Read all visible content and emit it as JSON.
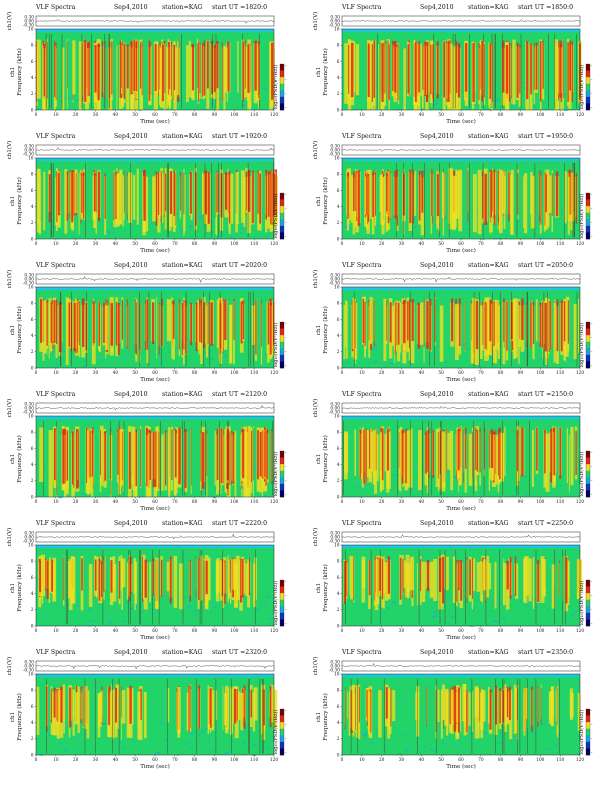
{
  "header_common": {
    "title": "VLF Spectra",
    "date": "Sep4,2010",
    "station": "station=KAG",
    "start_prefix": "start UT ="
  },
  "axis_text": {
    "x_label": "Time (sec)",
    "y_label_spec": "Frequency (kHz)",
    "channel_label": "ch1",
    "y_label_wave": "ch1(V)",
    "colorbar_label": "log₁₀(PSD(V²/Hz))"
  },
  "colors": {
    "spectrogram_low": "#1aa8d8",
    "spectrogram_mid": "#22d36a",
    "spectrogram_high": "#f0e020",
    "spectrogram_peak": "#e02818",
    "top_band": "#1dc7e3"
  },
  "chart_data": [
    {
      "type": "heatmap",
      "start_ut": "1820:0",
      "xlim": [
        0,
        120
      ],
      "ylim": [
        0,
        10
      ],
      "x_ticks": [
        0,
        10,
        20,
        30,
        40,
        50,
        60,
        70,
        80,
        90,
        100,
        110,
        120
      ],
      "y_ticks": [
        0,
        2,
        4,
        6,
        8,
        10
      ],
      "wave_ticks": [
        "0.30",
        "0.00",
        "-0.30"
      ],
      "colorbar_ticks": [
        "-",
        "-",
        "-",
        "-"
      ],
      "activity": "high"
    },
    {
      "type": "heatmap",
      "start_ut": "1850:0",
      "xlim": [
        0,
        120
      ],
      "ylim": [
        0,
        10
      ],
      "x_ticks": [
        0,
        10,
        20,
        30,
        40,
        50,
        60,
        70,
        80,
        90,
        100,
        110,
        120
      ],
      "y_ticks": [
        0,
        2,
        4,
        6,
        8,
        10
      ],
      "wave_ticks": [
        "0.30",
        "0.00",
        "-0.30"
      ],
      "colorbar_ticks": [
        "-",
        "-",
        "-",
        "-"
      ],
      "activity": "high"
    },
    {
      "type": "heatmap",
      "start_ut": "1920:0",
      "xlim": [
        0,
        120
      ],
      "ylim": [
        0,
        10
      ],
      "x_ticks": [
        0,
        10,
        20,
        30,
        40,
        50,
        60,
        70,
        80,
        90,
        100,
        110,
        120
      ],
      "y_ticks": [
        0,
        2,
        4,
        6,
        8,
        10
      ],
      "wave_ticks": [
        "0.30",
        "0.00",
        "-0.30"
      ],
      "colorbar_ticks": [
        "-",
        "-",
        "-",
        "-"
      ],
      "activity": "medium"
    },
    {
      "type": "heatmap",
      "start_ut": "1950:0",
      "xlim": [
        0,
        120
      ],
      "ylim": [
        0,
        10
      ],
      "x_ticks": [
        0,
        10,
        20,
        30,
        40,
        50,
        60,
        70,
        80,
        90,
        100,
        110,
        120
      ],
      "y_ticks": [
        0,
        2,
        4,
        6,
        8,
        10
      ],
      "wave_ticks": [
        "0.30",
        "0.00",
        "-0.30"
      ],
      "colorbar_ticks": [
        "-",
        "-",
        "-",
        "-"
      ],
      "activity": "medium"
    },
    {
      "type": "heatmap",
      "start_ut": "2020:0",
      "xlim": [
        0,
        120
      ],
      "ylim": [
        0,
        10
      ],
      "x_ticks": [
        0,
        10,
        20,
        30,
        40,
        50,
        60,
        70,
        80,
        90,
        100,
        110,
        120
      ],
      "y_ticks": [
        0,
        2,
        4,
        6,
        8,
        10
      ],
      "wave_ticks": [
        "0.30",
        "0.00",
        "-0.30"
      ],
      "colorbar_ticks": [
        "-",
        "-",
        "-",
        "-"
      ],
      "activity": "medium"
    },
    {
      "type": "heatmap",
      "start_ut": "2050:0",
      "xlim": [
        0,
        120
      ],
      "ylim": [
        0,
        10
      ],
      "x_ticks": [
        0,
        10,
        20,
        30,
        40,
        50,
        60,
        70,
        80,
        90,
        100,
        110,
        120
      ],
      "y_ticks": [
        0,
        2,
        4,
        6,
        8,
        10
      ],
      "wave_ticks": [
        "0.30",
        "0.00",
        "-0.30"
      ],
      "colorbar_ticks": [
        "-",
        "-",
        "-",
        "-"
      ],
      "activity": "medium"
    },
    {
      "type": "heatmap",
      "start_ut": "2120:0",
      "xlim": [
        0,
        120
      ],
      "ylim": [
        0,
        10
      ],
      "x_ticks": [
        0,
        10,
        20,
        30,
        40,
        50,
        60,
        70,
        80,
        90,
        100,
        110,
        120
      ],
      "y_ticks": [
        0,
        2,
        4,
        6,
        8,
        10
      ],
      "wave_ticks": [
        "0.30",
        "0.00",
        "-0.30"
      ],
      "colorbar_ticks": [
        "-",
        "-",
        "-",
        "-"
      ],
      "activity": "high"
    },
    {
      "type": "heatmap",
      "start_ut": "2150:0",
      "xlim": [
        0,
        120
      ],
      "ylim": [
        0,
        10
      ],
      "x_ticks": [
        0,
        10,
        20,
        30,
        40,
        50,
        60,
        70,
        80,
        90,
        100,
        110,
        120
      ],
      "y_ticks": [
        0,
        2,
        4,
        6,
        8,
        10
      ],
      "wave_ticks": [
        "0.30",
        "0.00",
        "-0.30"
      ],
      "colorbar_ticks": [
        "-",
        "-",
        "-",
        "-"
      ],
      "activity": "medium"
    },
    {
      "type": "heatmap",
      "start_ut": "2220:0",
      "xlim": [
        0,
        120
      ],
      "ylim": [
        0,
        10
      ],
      "x_ticks": [
        0,
        10,
        20,
        30,
        40,
        50,
        60,
        70,
        80,
        90,
        100,
        110,
        120
      ],
      "y_ticks": [
        0,
        2,
        4,
        6,
        8,
        10
      ],
      "wave_ticks": [
        "0.30",
        "0.00",
        "-0.30"
      ],
      "colorbar_ticks": [
        "-",
        "-",
        "-",
        "-"
      ],
      "activity": "low"
    },
    {
      "type": "heatmap",
      "start_ut": "2250:0",
      "xlim": [
        0,
        120
      ],
      "ylim": [
        0,
        10
      ],
      "x_ticks": [
        0,
        10,
        20,
        30,
        40,
        50,
        60,
        70,
        80,
        90,
        100,
        110,
        120
      ],
      "y_ticks": [
        0,
        2,
        4,
        6,
        8,
        10
      ],
      "wave_ticks": [
        "0.30",
        "0.00",
        "-0.30"
      ],
      "colorbar_ticks": [
        "-",
        "-",
        "-",
        "-"
      ],
      "activity": "low"
    },
    {
      "type": "heatmap",
      "start_ut": "2320:0",
      "xlim": [
        0,
        120
      ],
      "ylim": [
        0,
        10
      ],
      "x_ticks": [
        0,
        10,
        20,
        30,
        40,
        50,
        60,
        70,
        80,
        90,
        100,
        110,
        120
      ],
      "y_ticks": [
        0,
        2,
        4,
        6,
        8,
        10
      ],
      "wave_ticks": [
        "0.30",
        "0.00",
        "-0.30"
      ],
      "colorbar_ticks": [
        "-",
        "-",
        "-",
        "-"
      ],
      "activity": "low"
    },
    {
      "type": "heatmap",
      "start_ut": "2350:0",
      "xlim": [
        0,
        120
      ],
      "ylim": [
        0,
        10
      ],
      "x_ticks": [
        0,
        10,
        20,
        30,
        40,
        50,
        60,
        70,
        80,
        90,
        100,
        110,
        120
      ],
      "y_ticks": [
        0,
        2,
        4,
        6,
        8,
        10
      ],
      "wave_ticks": [
        "0.30",
        "0.00",
        "-0.30"
      ],
      "colorbar_ticks": [
        "-",
        "-",
        "-",
        "-"
      ],
      "activity": "low"
    }
  ]
}
